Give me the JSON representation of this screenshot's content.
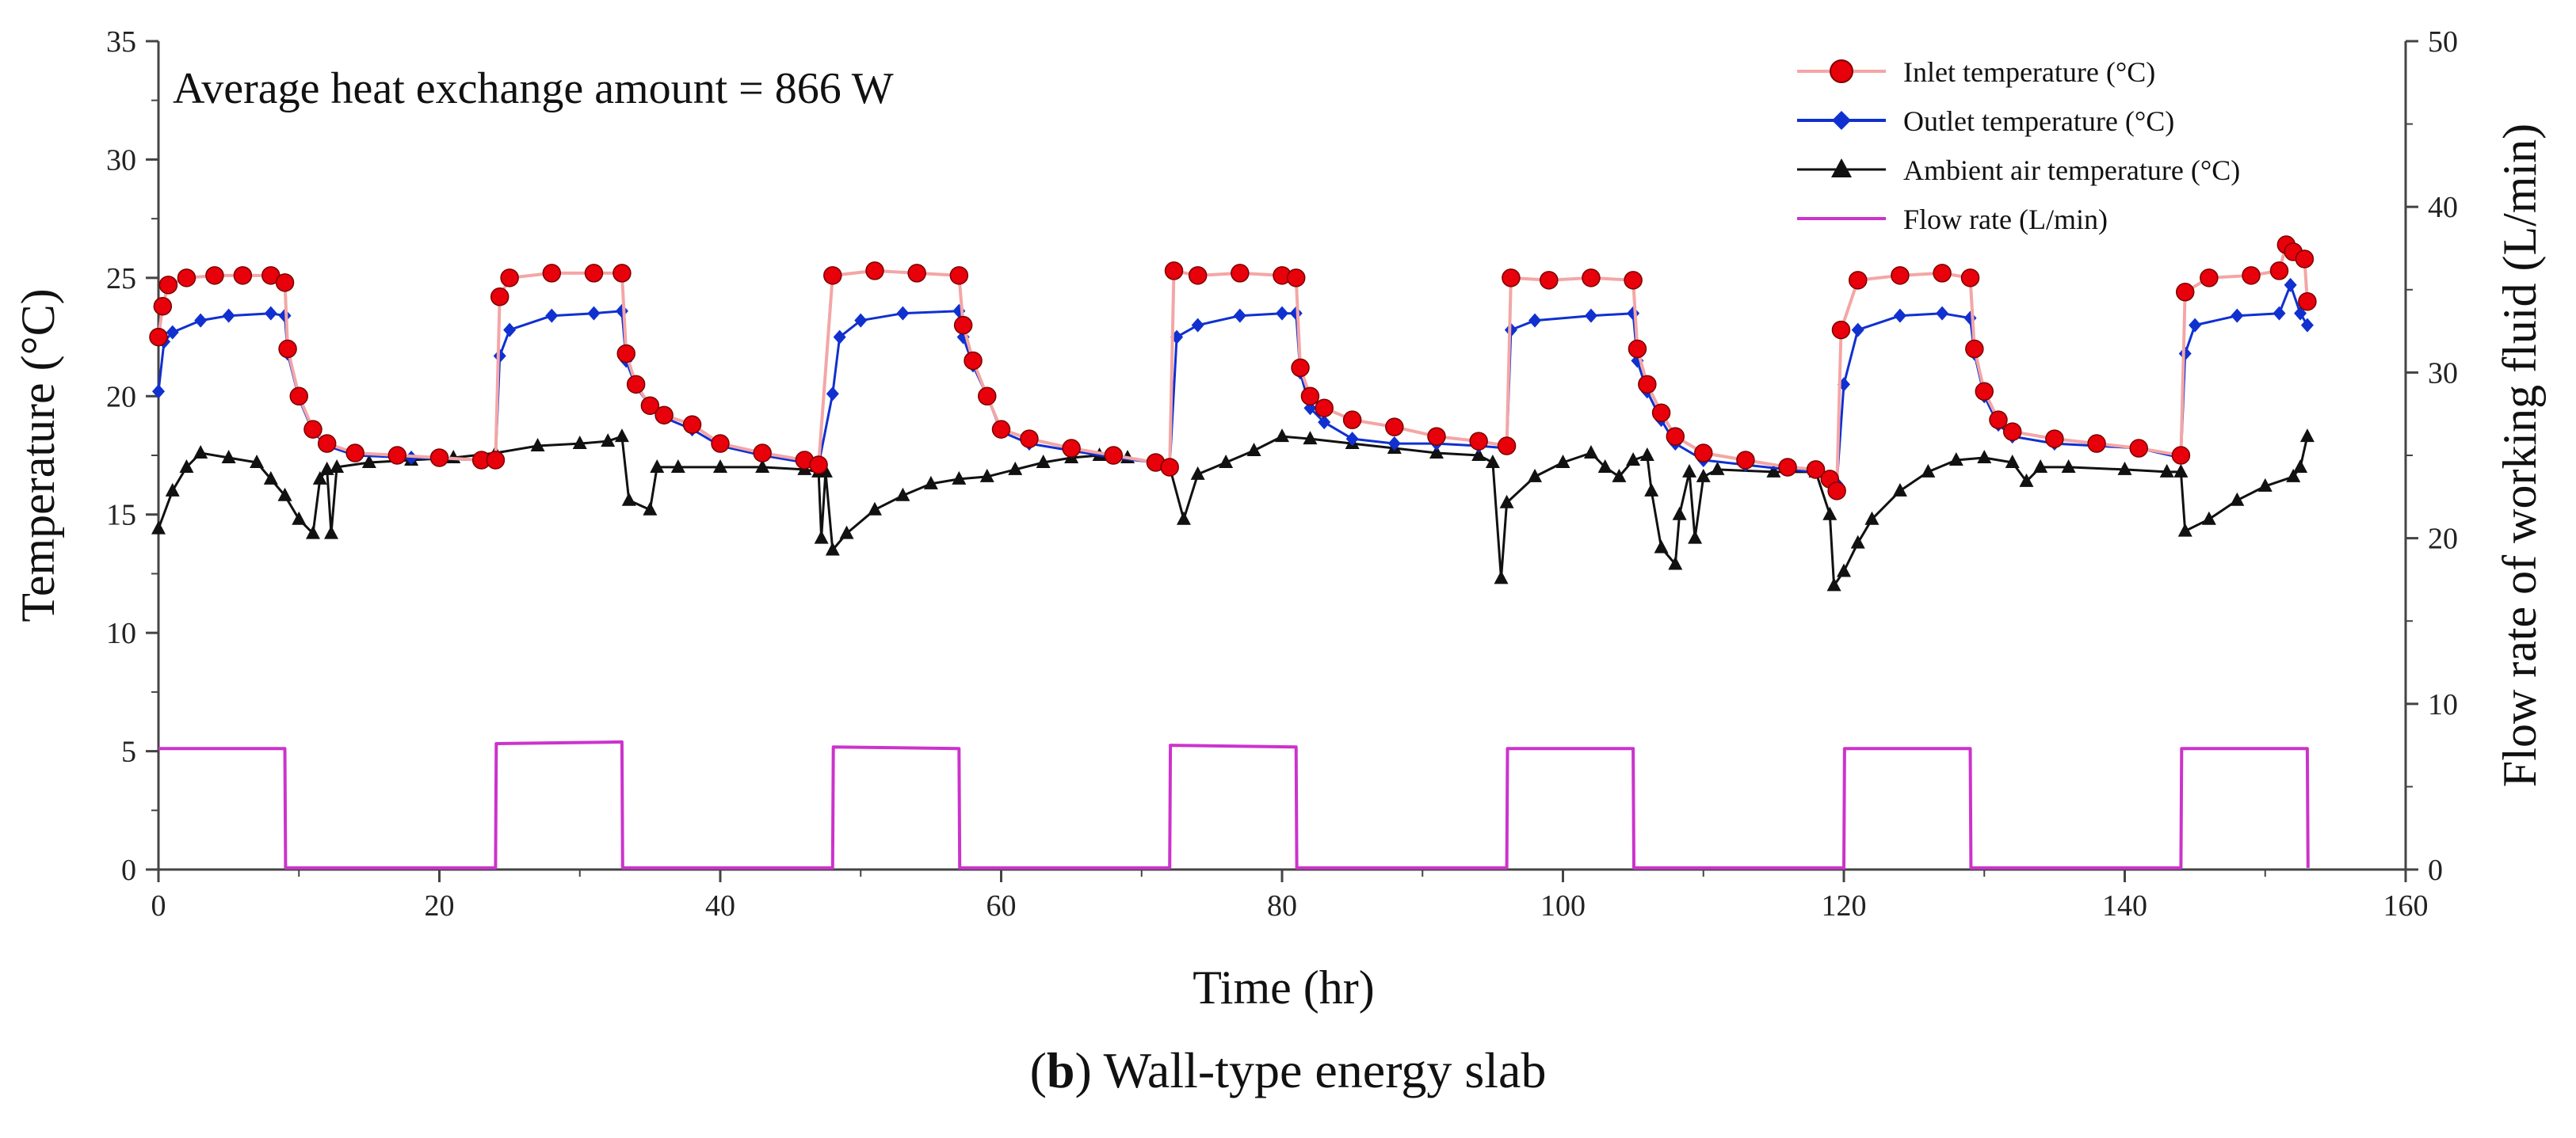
{
  "chart_data": {
    "type": "line",
    "annotation": "Average heat exchange amount = 866 W",
    "xlabel": "Time (hr)",
    "ylabel_left": "Temperature (°C)",
    "ylabel_right": "Flow rate of working fluid (L/min)",
    "xlim": [
      0,
      160
    ],
    "ylim_left": [
      0,
      35
    ],
    "ylim_right": [
      0,
      50
    ],
    "x_ticks": [
      "0",
      "20",
      "40",
      "60",
      "80",
      "100",
      "120",
      "140",
      "160"
    ],
    "y_ticks_left": [
      "0",
      "5",
      "10",
      "15",
      "20",
      "25",
      "30",
      "35"
    ],
    "y_ticks_right": [
      "0",
      "10",
      "20",
      "30",
      "40",
      "50"
    ],
    "grid": false,
    "legend_position": "top-right",
    "colors": {
      "inlet_marker": "#e8000b",
      "inlet_line": "#f4a6a6",
      "outlet": "#1030d0",
      "ambient": "#111111",
      "flow": "#cc33cc"
    },
    "series": [
      {
        "name": "Inlet temperature (°C)",
        "axis": "left",
        "marker": "circle",
        "points": [
          [
            0,
            22.5
          ],
          [
            0.3,
            23.8
          ],
          [
            0.7,
            24.7
          ],
          [
            2,
            25.0
          ],
          [
            4,
            25.1
          ],
          [
            6,
            25.1
          ],
          [
            8,
            25.1
          ],
          [
            9,
            24.8
          ],
          [
            9.2,
            22.0
          ],
          [
            10,
            20.0
          ],
          [
            11,
            18.6
          ],
          [
            12,
            18.0
          ],
          [
            14,
            17.6
          ],
          [
            17,
            17.5
          ],
          [
            20,
            17.4
          ],
          [
            23,
            17.3
          ],
          [
            24,
            17.3
          ],
          [
            24.3,
            24.2
          ],
          [
            25,
            25.0
          ],
          [
            28,
            25.2
          ],
          [
            31,
            25.2
          ],
          [
            33,
            25.2
          ],
          [
            33.3,
            21.8
          ],
          [
            34,
            20.5
          ],
          [
            35,
            19.6
          ],
          [
            36,
            19.2
          ],
          [
            38,
            18.8
          ],
          [
            40,
            18.0
          ],
          [
            43,
            17.6
          ],
          [
            46,
            17.3
          ],
          [
            47,
            17.1
          ],
          [
            48,
            25.1
          ],
          [
            51,
            25.3
          ],
          [
            54,
            25.2
          ],
          [
            57,
            25.1
          ],
          [
            57.3,
            23.0
          ],
          [
            58,
            21.5
          ],
          [
            59,
            20.0
          ],
          [
            60,
            18.6
          ],
          [
            62,
            18.2
          ],
          [
            65,
            17.8
          ],
          [
            68,
            17.5
          ],
          [
            71,
            17.2
          ],
          [
            72,
            17.0
          ],
          [
            72.3,
            25.3
          ],
          [
            74,
            25.1
          ],
          [
            77,
            25.2
          ],
          [
            80,
            25.1
          ],
          [
            81,
            25.0
          ],
          [
            81.3,
            21.2
          ],
          [
            82,
            20.0
          ],
          [
            83,
            19.5
          ],
          [
            85,
            19.0
          ],
          [
            88,
            18.7
          ],
          [
            91,
            18.3
          ],
          [
            94,
            18.1
          ],
          [
            96,
            17.9
          ],
          [
            96.3,
            25.0
          ],
          [
            99,
            24.9
          ],
          [
            102,
            25.0
          ],
          [
            105,
            24.9
          ],
          [
            105.3,
            22.0
          ],
          [
            106,
            20.5
          ],
          [
            107,
            19.3
          ],
          [
            108,
            18.3
          ],
          [
            110,
            17.6
          ],
          [
            113,
            17.3
          ],
          [
            116,
            17.0
          ],
          [
            118,
            16.9
          ],
          [
            119,
            16.5
          ],
          [
            119.5,
            16.0
          ],
          [
            119.8,
            22.8
          ],
          [
            121,
            24.9
          ],
          [
            124,
            25.1
          ],
          [
            127,
            25.2
          ],
          [
            129,
            25.0
          ],
          [
            129.3,
            22.0
          ],
          [
            130,
            20.2
          ],
          [
            131,
            19.0
          ],
          [
            132,
            18.5
          ],
          [
            135,
            18.2
          ],
          [
            138,
            18.0
          ],
          [
            141,
            17.8
          ],
          [
            144,
            17.5
          ],
          [
            144.3,
            24.4
          ],
          [
            146,
            25.0
          ],
          [
            149,
            25.1
          ],
          [
            151,
            25.3
          ],
          [
            151.5,
            26.4
          ],
          [
            152,
            26.1
          ],
          [
            152.8,
            25.8
          ],
          [
            153,
            24.0
          ]
        ]
      },
      {
        "name": "Outlet temperature (°C)",
        "axis": "left",
        "marker": "diamond",
        "points": [
          [
            0,
            20.2
          ],
          [
            0.4,
            22.3
          ],
          [
            1,
            22.7
          ],
          [
            3,
            23.2
          ],
          [
            5,
            23.4
          ],
          [
            8,
            23.5
          ],
          [
            9,
            23.4
          ],
          [
            9.2,
            21.8
          ],
          [
            10,
            19.9
          ],
          [
            11,
            18.5
          ],
          [
            12,
            17.9
          ],
          [
            14,
            17.5
          ],
          [
            18,
            17.4
          ],
          [
            23,
            17.3
          ],
          [
            24,
            17.3
          ],
          [
            24.3,
            21.7
          ],
          [
            25,
            22.8
          ],
          [
            28,
            23.4
          ],
          [
            31,
            23.5
          ],
          [
            33,
            23.6
          ],
          [
            33.3,
            21.5
          ],
          [
            34,
            20.4
          ],
          [
            35,
            19.6
          ],
          [
            36,
            19.1
          ],
          [
            38,
            18.6
          ],
          [
            40,
            17.9
          ],
          [
            43,
            17.5
          ],
          [
            46,
            17.2
          ],
          [
            47,
            17.1
          ],
          [
            48,
            20.1
          ],
          [
            48.5,
            22.5
          ],
          [
            50,
            23.2
          ],
          [
            53,
            23.5
          ],
          [
            57,
            23.6
          ],
          [
            57.3,
            22.5
          ],
          [
            58,
            21.3
          ],
          [
            59,
            20.0
          ],
          [
            60,
            18.5
          ],
          [
            62,
            18.0
          ],
          [
            65,
            17.7
          ],
          [
            68,
            17.4
          ],
          [
            71,
            17.2
          ],
          [
            72,
            17.0
          ],
          [
            72.5,
            22.5
          ],
          [
            74,
            23.0
          ],
          [
            77,
            23.4
          ],
          [
            80,
            23.5
          ],
          [
            81,
            23.5
          ],
          [
            81.3,
            21.0
          ],
          [
            82,
            19.5
          ],
          [
            83,
            18.9
          ],
          [
            85,
            18.2
          ],
          [
            88,
            18.0
          ],
          [
            91,
            18.0
          ],
          [
            94,
            17.9
          ],
          [
            96,
            17.8
          ],
          [
            96.3,
            22.8
          ],
          [
            98,
            23.2
          ],
          [
            102,
            23.4
          ],
          [
            105,
            23.5
          ],
          [
            105.3,
            21.5
          ],
          [
            106,
            20.2
          ],
          [
            107,
            19.0
          ],
          [
            108,
            18.0
          ],
          [
            110,
            17.3
          ],
          [
            113,
            17.1
          ],
          [
            116,
            16.9
          ],
          [
            118,
            16.8
          ],
          [
            119,
            16.4
          ],
          [
            119.5,
            16.3
          ],
          [
            120,
            20.5
          ],
          [
            121,
            22.8
          ],
          [
            124,
            23.4
          ],
          [
            127,
            23.5
          ],
          [
            129,
            23.3
          ],
          [
            129.3,
            21.8
          ],
          [
            130,
            20.0
          ],
          [
            131,
            18.8
          ],
          [
            132,
            18.3
          ],
          [
            135,
            18.0
          ],
          [
            138,
            17.9
          ],
          [
            141,
            17.8
          ],
          [
            144,
            17.4
          ],
          [
            144.3,
            21.8
          ],
          [
            145,
            23.0
          ],
          [
            148,
            23.4
          ],
          [
            151,
            23.5
          ],
          [
            151.8,
            24.7
          ],
          [
            152.5,
            23.5
          ],
          [
            153,
            23.0
          ]
        ]
      },
      {
        "name": "Ambient air temperature (°C)",
        "axis": "left",
        "marker": "triangle",
        "points": [
          [
            0,
            14.4
          ],
          [
            1,
            16.0
          ],
          [
            2,
            17.0
          ],
          [
            3,
            17.6
          ],
          [
            5,
            17.4
          ],
          [
            7,
            17.2
          ],
          [
            8,
            16.5
          ],
          [
            9,
            15.8
          ],
          [
            10,
            14.8
          ],
          [
            11,
            14.2
          ],
          [
            11.5,
            16.5
          ],
          [
            12,
            16.9
          ],
          [
            12.3,
            14.2
          ],
          [
            12.7,
            17.0
          ],
          [
            15,
            17.2
          ],
          [
            18,
            17.3
          ],
          [
            21,
            17.4
          ],
          [
            24,
            17.6
          ],
          [
            27,
            17.9
          ],
          [
            30,
            18.0
          ],
          [
            32,
            18.1
          ],
          [
            33,
            18.3
          ],
          [
            33.5,
            15.6
          ],
          [
            35,
            15.2
          ],
          [
            35.5,
            17.0
          ],
          [
            37,
            17.0
          ],
          [
            40,
            17.0
          ],
          [
            43,
            17.0
          ],
          [
            46,
            16.9
          ],
          [
            47,
            16.8
          ],
          [
            47.2,
            14.0
          ],
          [
            47.5,
            16.8
          ],
          [
            48,
            13.5
          ],
          [
            49,
            14.2
          ],
          [
            51,
            15.2
          ],
          [
            53,
            15.8
          ],
          [
            55,
            16.3
          ],
          [
            57,
            16.5
          ],
          [
            59,
            16.6
          ],
          [
            61,
            16.9
          ],
          [
            63,
            17.2
          ],
          [
            65,
            17.4
          ],
          [
            67,
            17.5
          ],
          [
            69,
            17.4
          ],
          [
            71,
            17.2
          ],
          [
            72,
            17.0
          ],
          [
            73,
            14.8
          ],
          [
            74,
            16.7
          ],
          [
            76,
            17.2
          ],
          [
            78,
            17.7
          ],
          [
            80,
            18.3
          ],
          [
            82,
            18.2
          ],
          [
            85,
            18.0
          ],
          [
            88,
            17.8
          ],
          [
            91,
            17.6
          ],
          [
            94,
            17.5
          ],
          [
            95,
            17.2
          ],
          [
            95.6,
            12.3
          ],
          [
            96,
            15.5
          ],
          [
            98,
            16.6
          ],
          [
            100,
            17.2
          ],
          [
            102,
            17.6
          ],
          [
            103,
            17.0
          ],
          [
            104,
            16.6
          ],
          [
            105,
            17.3
          ],
          [
            106,
            17.5
          ],
          [
            106.3,
            16.0
          ],
          [
            107,
            13.6
          ],
          [
            108,
            12.9
          ],
          [
            108.3,
            15.0
          ],
          [
            109,
            16.8
          ],
          [
            109.4,
            14.0
          ],
          [
            110,
            16.6
          ],
          [
            111,
            16.9
          ],
          [
            115,
            16.8
          ],
          [
            118,
            16.8
          ],
          [
            119,
            15.0
          ],
          [
            119.3,
            12.0
          ],
          [
            120,
            12.6
          ],
          [
            121,
            13.8
          ],
          [
            122,
            14.8
          ],
          [
            124,
            16.0
          ],
          [
            126,
            16.8
          ],
          [
            128,
            17.3
          ],
          [
            130,
            17.4
          ],
          [
            132,
            17.2
          ],
          [
            133,
            16.4
          ],
          [
            134,
            17.0
          ],
          [
            136,
            17.0
          ],
          [
            140,
            16.9
          ],
          [
            143,
            16.8
          ],
          [
            144,
            16.8
          ],
          [
            144.3,
            14.3
          ],
          [
            146,
            14.8
          ],
          [
            148,
            15.6
          ],
          [
            150,
            16.2
          ],
          [
            152,
            16.6
          ],
          [
            152.5,
            17.0
          ],
          [
            153,
            18.3
          ]
        ]
      },
      {
        "name": "Flow rate (L/min)",
        "axis": "right",
        "marker": "none",
        "points": [
          [
            0,
            7.3
          ],
          [
            9,
            7.3
          ],
          [
            9.05,
            0.1
          ],
          [
            24,
            0.1
          ],
          [
            24.05,
            7.6
          ],
          [
            33,
            7.7
          ],
          [
            33.05,
            0.1
          ],
          [
            48,
            0.1
          ],
          [
            48.05,
            7.4
          ],
          [
            57,
            7.3
          ],
          [
            57.05,
            0.1
          ],
          [
            72,
            0.1
          ],
          [
            72.05,
            7.5
          ],
          [
            81,
            7.4
          ],
          [
            81.05,
            0.1
          ],
          [
            96,
            0.1
          ],
          [
            96.05,
            7.3
          ],
          [
            105,
            7.3
          ],
          [
            105.05,
            0.1
          ],
          [
            120,
            0.1
          ],
          [
            120.05,
            7.3
          ],
          [
            129,
            7.3
          ],
          [
            129.05,
            0.1
          ],
          [
            144,
            0.1
          ],
          [
            144.05,
            7.3
          ],
          [
            153,
            7.3
          ],
          [
            153.05,
            0.1
          ]
        ]
      }
    ]
  },
  "caption": {
    "open": "(",
    "bold": "b",
    "rest": ") Wall-type energy slab"
  }
}
